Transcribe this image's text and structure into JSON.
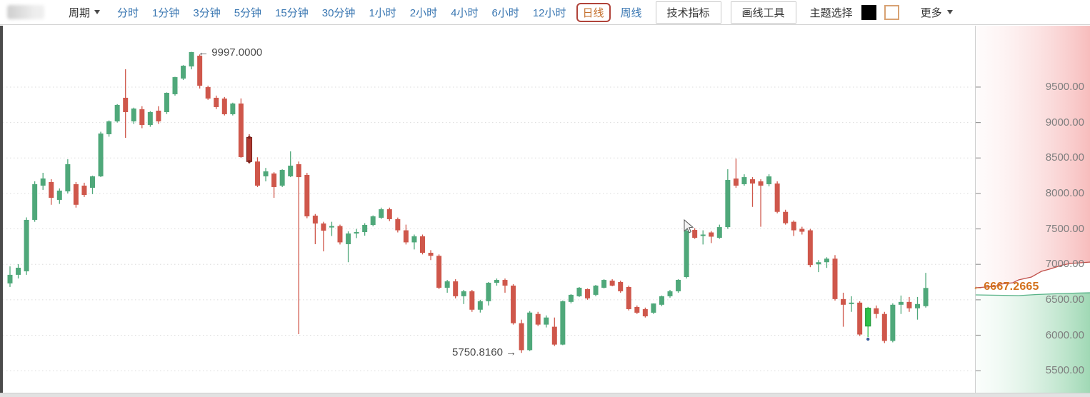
{
  "toolbar": {
    "period_label": "周期",
    "periods": [
      {
        "label": "分时",
        "active": false
      },
      {
        "label": "1分钟",
        "active": false
      },
      {
        "label": "3分钟",
        "active": false
      },
      {
        "label": "5分钟",
        "active": false
      },
      {
        "label": "15分钟",
        "active": false
      },
      {
        "label": "30分钟",
        "active": false
      },
      {
        "label": "1小时",
        "active": false
      },
      {
        "label": "2小时",
        "active": false
      },
      {
        "label": "4小时",
        "active": false
      },
      {
        "label": "6小时",
        "active": false
      },
      {
        "label": "12小时",
        "active": false
      },
      {
        "label": "日线",
        "active": true
      },
      {
        "label": "周线",
        "active": false
      }
    ],
    "indicator_button": "技术指标",
    "drawing_button": "画线工具",
    "theme_label": "主题选择",
    "theme_swatches": [
      {
        "name": "dark",
        "color": "#000000",
        "selected": false
      },
      {
        "name": "light",
        "color": "#ffffff",
        "selected": true,
        "border": "#d8a273"
      }
    ],
    "more_label": "更多"
  },
  "colors": {
    "up": "#4fa87a",
    "down": "#cf574b",
    "selected_down_fill": "#b23a31",
    "selected_down_stroke": "#7c241e",
    "selected_up_fill": "#2dc04a",
    "selected_up_stroke": "#1f9a37",
    "marker_dot_blue": "#3b5f9e",
    "link_blue": "#3a77b2",
    "active_orange": "#c4702d",
    "active_border": "#b0433a",
    "price_tag_orange": "#d3711c",
    "axis_label_gray": "#7e7e7e",
    "grid": "#dcdcdc",
    "ask_line": "#c0504a",
    "bid_line": "#57b287",
    "ask_fill_right": "#f7bcbc",
    "bid_fill_right": "#9fd8b4"
  },
  "annotations": {
    "high": "← 9997.0000",
    "low": "5750.8160 →",
    "current_price": "←6667.2665"
  },
  "axis": {
    "labels": [
      "9500.00",
      "9000.00",
      "8500.00",
      "8000.00",
      "7500.00",
      "7000.00",
      "6500.00",
      "6000.00",
      "5500.00"
    ],
    "prices": [
      9500,
      9000,
      8500,
      8000,
      7500,
      7000,
      6500,
      6000,
      5500
    ]
  },
  "chart_data": {
    "type": "candlestick",
    "title": "",
    "xlabel": "",
    "ylabel": "",
    "price_axis": {
      "min": 5250,
      "max": 10050,
      "ticks": [
        9500,
        9000,
        8500,
        8000,
        7500,
        7000,
        6500,
        6000,
        5500
      ]
    },
    "grid": "dotted-horizontal",
    "high_annotation": {
      "index": 22,
      "value": 9997.0,
      "label": "← 9997.0000"
    },
    "low_annotation": {
      "index": 62,
      "value": 5750.816,
      "label": "5750.8160 →"
    },
    "last_price": 6667.2665,
    "selected": {
      "dark_red_index": 29,
      "bright_green_index": 104
    },
    "candles": [
      [
        6731,
        6971,
        6681,
        6852
      ],
      [
        6852,
        7002,
        6801,
        6952
      ],
      [
        6902,
        7662,
        6852,
        7627
      ],
      [
        7627,
        8171,
        7600,
        8130
      ],
      [
        8110,
        8291,
        8050,
        8211
      ],
      [
        8160,
        8201,
        7840,
        7938
      ],
      [
        7909,
        8071,
        7852,
        8040
      ],
      [
        8029,
        8482,
        8000,
        8412
      ],
      [
        8130,
        8160,
        7800,
        7840
      ],
      [
        8110,
        8151,
        7950,
        7979
      ],
      [
        8080,
        8251,
        7990,
        8241
      ],
      [
        8241,
        8870,
        8230,
        8845
      ],
      [
        8835,
        9030,
        8800,
        9016
      ],
      [
        9016,
        9260,
        9000,
        9248
      ],
      [
        9349,
        9751,
        8784,
        9147
      ],
      [
        9016,
        9210,
        8980,
        9197
      ],
      [
        9187,
        9230,
        8920,
        8966
      ],
      [
        8966,
        9160,
        8940,
        9147
      ],
      [
        9167,
        9230,
        8980,
        9016
      ],
      [
        9147,
        9425,
        9120,
        9419
      ],
      [
        9399,
        9645,
        9380,
        9640
      ],
      [
        9620,
        9810,
        9600,
        9801
      ],
      [
        9791,
        9997,
        9750,
        9993
      ],
      [
        9942,
        9960,
        9480,
        9519
      ],
      [
        9499,
        9520,
        9320,
        9338
      ],
      [
        9349,
        9380,
        9190,
        9218
      ],
      [
        9338,
        9360,
        9100,
        9117
      ],
      [
        9117,
        9280,
        9100,
        9268
      ],
      [
        9268,
        9340,
        8500,
        8513
      ],
      [
        8790,
        8835,
        8420,
        8450
      ],
      [
        8450,
        8510,
        8090,
        8110
      ],
      [
        8241,
        8360,
        8170,
        8311
      ],
      [
        8281,
        8300,
        7938,
        8090
      ],
      [
        8110,
        8340,
        8090,
        8331
      ],
      [
        8241,
        8593,
        8230,
        8392
      ],
      [
        8412,
        8450,
        6015,
        8230
      ],
      [
        8261,
        8290,
        7650,
        7677
      ],
      [
        7687,
        7710,
        7284,
        7576
      ],
      [
        7576,
        7600,
        7183,
        7475
      ],
      [
        7530,
        7600,
        7400,
        7540
      ],
      [
        7540,
        7560,
        7280,
        7310
      ],
      [
        7284,
        7465,
        7030,
        7435
      ],
      [
        7435,
        7500,
        7370,
        7455
      ],
      [
        7455,
        7580,
        7405,
        7556
      ],
      [
        7556,
        7690,
        7536,
        7677
      ],
      [
        7657,
        7800,
        7640,
        7777
      ],
      [
        7777,
        7800,
        7610,
        7637
      ],
      [
        7637,
        7660,
        7450,
        7480
      ],
      [
        7480,
        7560,
        7280,
        7310
      ],
      [
        7310,
        7420,
        7210,
        7395
      ],
      [
        7395,
        7420,
        7140,
        7163
      ],
      [
        7163,
        7200,
        7060,
        7120
      ],
      [
        7120,
        7140,
        6650,
        6670
      ],
      [
        6670,
        6780,
        6600,
        6760
      ],
      [
        6760,
        6790,
        6520,
        6550
      ],
      [
        6550,
        6640,
        6440,
        6620
      ],
      [
        6620,
        6640,
        6330,
        6360
      ],
      [
        6360,
        6500,
        6320,
        6480
      ],
      [
        6480,
        6751,
        6420,
        6740
      ],
      [
        6740,
        6800,
        6700,
        6780
      ],
      [
        6780,
        6800,
        6600,
        6700
      ],
      [
        6700,
        6720,
        6150,
        6170
      ],
      [
        6170,
        6220,
        5751,
        5790
      ],
      [
        5790,
        6340,
        5778,
        6320
      ],
      [
        6300,
        6330,
        6130,
        6150
      ],
      [
        6150,
        6280,
        6110,
        6250
      ],
      [
        6120,
        6250,
        5848,
        5868
      ],
      [
        5868,
        6490,
        5860,
        6480
      ],
      [
        6470,
        6580,
        6450,
        6570
      ],
      [
        6550,
        6680,
        6540,
        6670
      ],
      [
        6650,
        6660,
        6500,
        6520
      ],
      [
        6570,
        6710,
        6550,
        6700
      ],
      [
        6670,
        6790,
        6660,
        6780
      ],
      [
        6770,
        6790,
        6690,
        6700
      ],
      [
        6751,
        6770,
        6600,
        6620
      ],
      [
        6680,
        6700,
        6350,
        6368
      ],
      [
        6398,
        6420,
        6300,
        6318
      ],
      [
        6368,
        6390,
        6250,
        6267
      ],
      [
        6318,
        6450,
        6300,
        6448
      ],
      [
        6430,
        6560,
        6410,
        6550
      ],
      [
        6550,
        6640,
        6530,
        6620
      ],
      [
        6620,
        6790,
        6600,
        6781
      ],
      [
        6821,
        7495,
        6800,
        7475
      ],
      [
        7485,
        7510,
        7360,
        7374
      ],
      [
        7400,
        7480,
        7280,
        7420
      ],
      [
        7450,
        7470,
        7300,
        7390
      ],
      [
        7374,
        7560,
        7360,
        7525
      ],
      [
        7525,
        8341,
        7500,
        8190
      ],
      [
        8210,
        8492,
        8080,
        8110
      ],
      [
        8130,
        8270,
        8110,
        8230
      ],
      [
        8200,
        8230,
        7810,
        8140
      ],
      [
        8170,
        8200,
        7530,
        8110
      ],
      [
        8130,
        8270,
        8100,
        8240
      ],
      [
        8140,
        8170,
        7720,
        7740
      ],
      [
        7740,
        7770,
        7560,
        7580
      ],
      [
        7600,
        7620,
        7400,
        7480
      ],
      [
        7500,
        7530,
        7420,
        7460
      ],
      [
        7480,
        7500,
        6960,
        6990
      ],
      [
        7000,
        7060,
        6890,
        7030
      ],
      [
        7030,
        7100,
        6950,
        7080
      ],
      [
        7080,
        7130,
        6490,
        6510
      ],
      [
        6510,
        6600,
        6120,
        6430
      ],
      [
        6450,
        6550,
        6330,
        6460
      ],
      [
        6460,
        6480,
        5990,
        6010
      ],
      [
        6130,
        6400,
        5975,
        6380
      ],
      [
        6380,
        6420,
        6240,
        6300
      ],
      [
        6300,
        6330,
        5890,
        5920
      ],
      [
        5920,
        6450,
        5900,
        6430
      ],
      [
        6430,
        6560,
        6300,
        6470
      ],
      [
        6470,
        6540,
        6330,
        6380
      ],
      [
        6380,
        6540,
        6220,
        6440
      ],
      [
        6410,
        6880,
        6390,
        6667
      ]
    ]
  },
  "depth": {
    "ask_line": [
      [
        0,
        367
      ],
      [
        28,
        365
      ],
      [
        34,
        362
      ],
      [
        52,
        360
      ],
      [
        60,
        356
      ],
      [
        78,
        352
      ],
      [
        92,
        344
      ],
      [
        103,
        341
      ],
      [
        122,
        335
      ],
      [
        133,
        333
      ],
      [
        161,
        331
      ]
    ],
    "bid_line": [
      [
        0,
        377
      ],
      [
        30,
        377.5
      ],
      [
        60,
        378
      ],
      [
        85,
        376.5
      ],
      [
        110,
        375.5
      ],
      [
        140,
        374.5
      ],
      [
        161,
        374
      ]
    ]
  }
}
